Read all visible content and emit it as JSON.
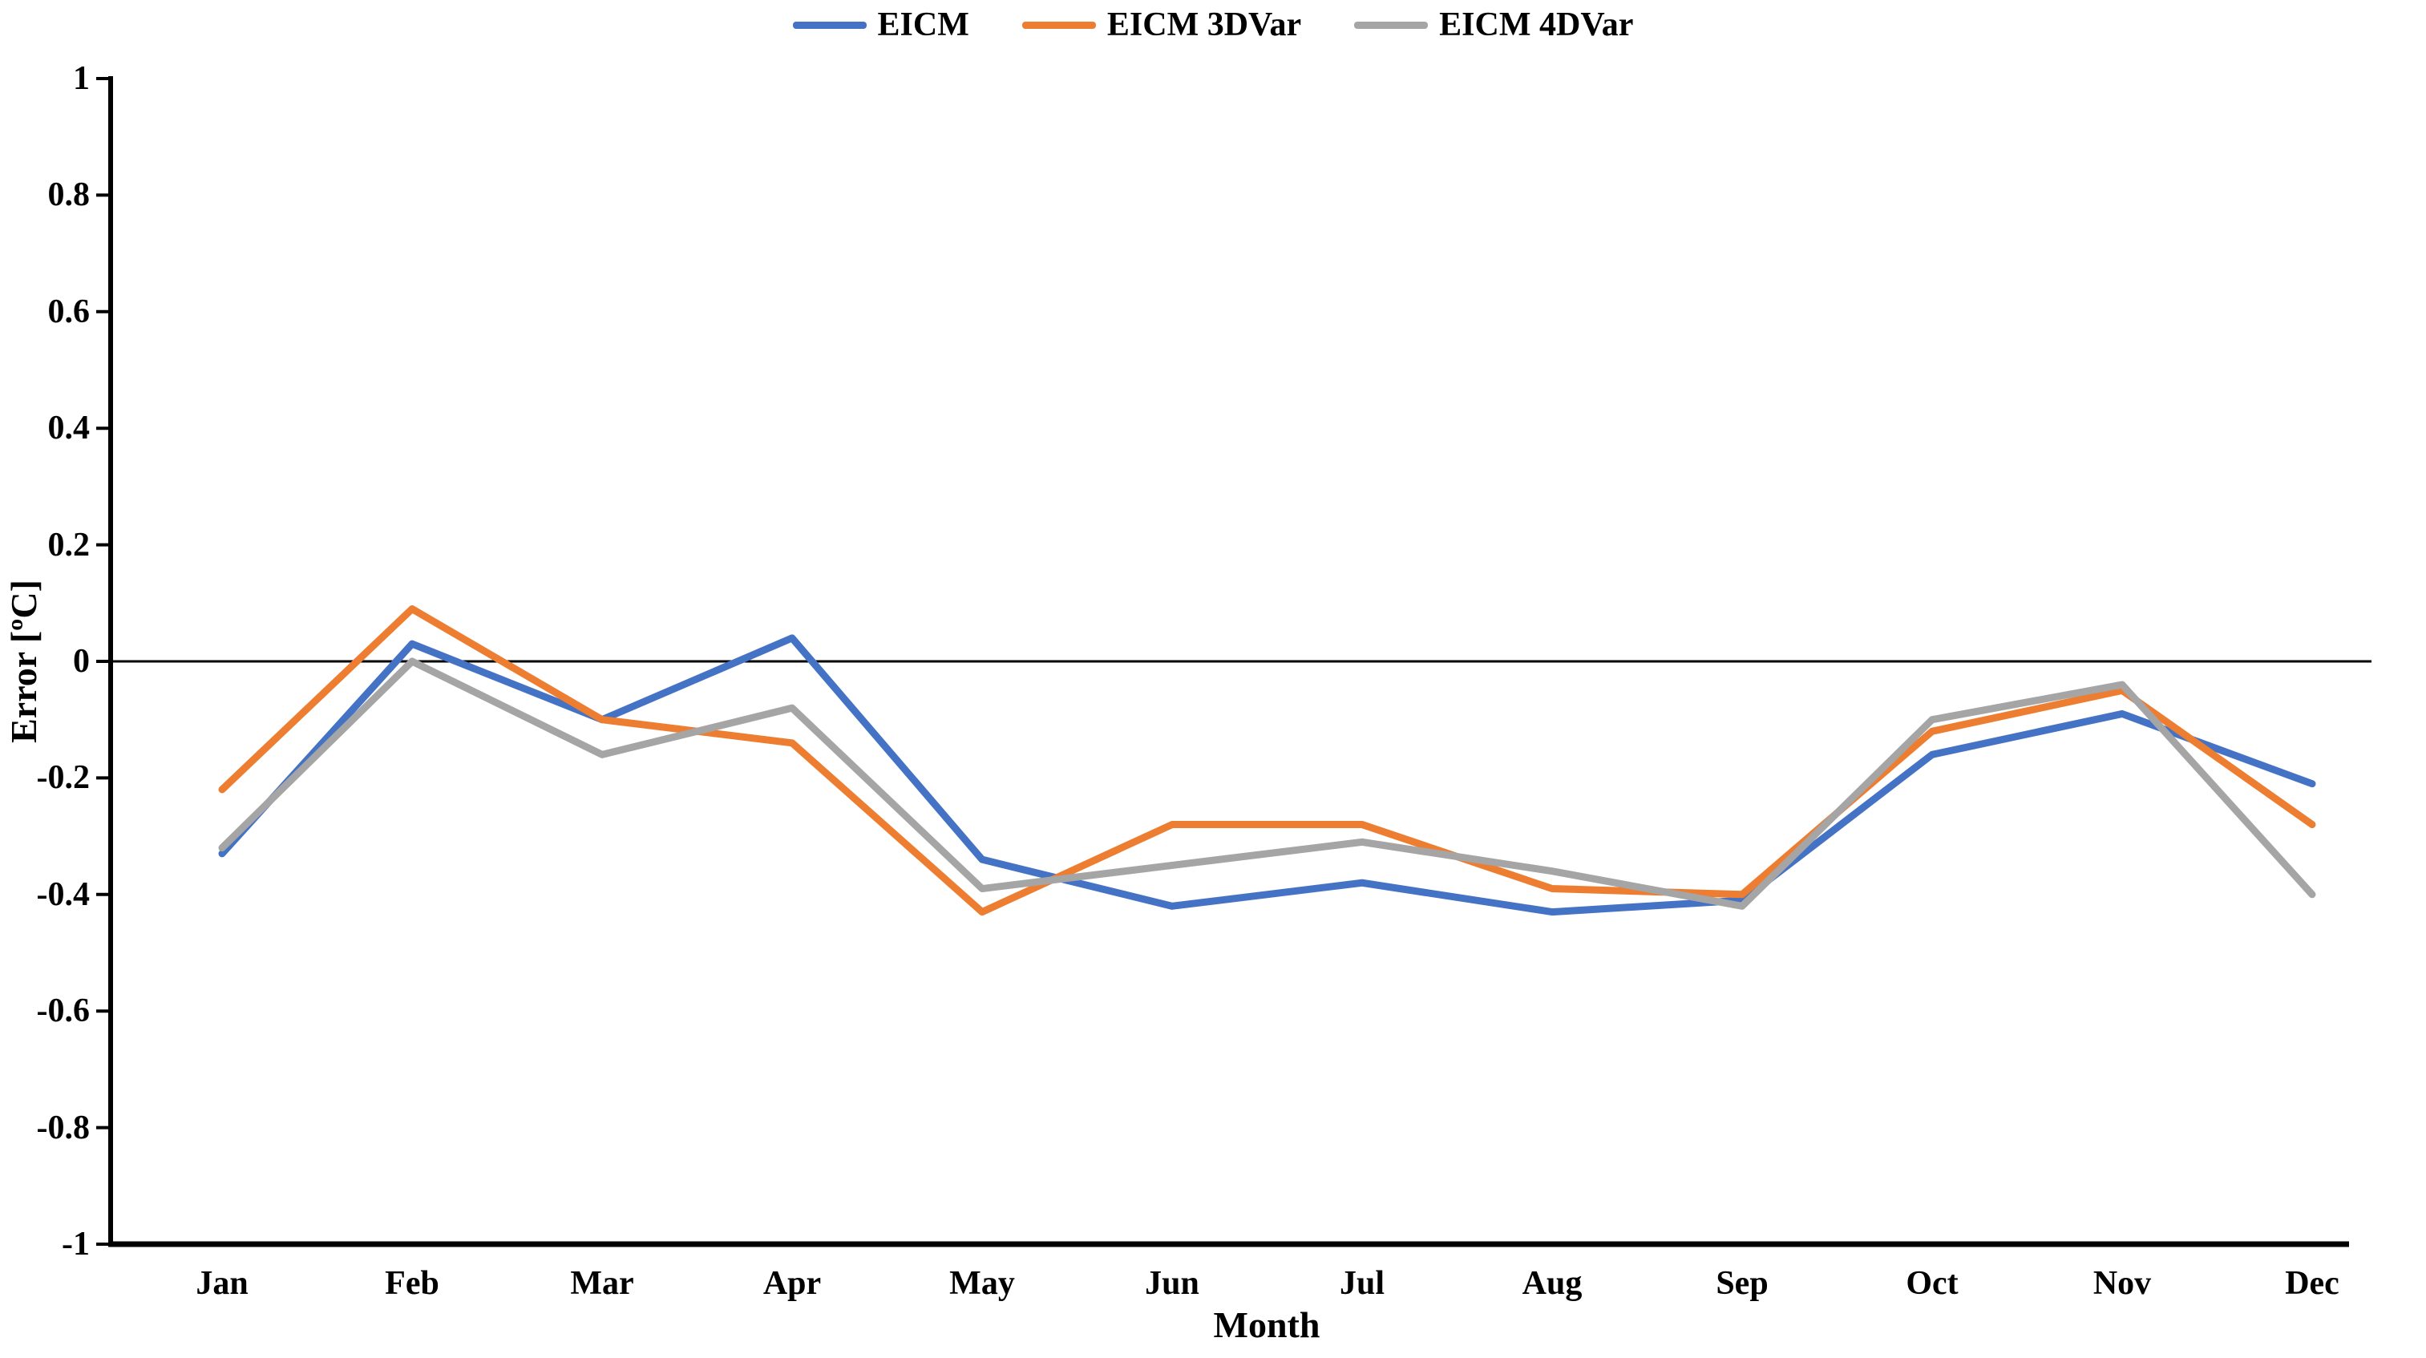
{
  "chart_data": {
    "type": "line",
    "title": "",
    "categories": [
      "Jan",
      "Feb",
      "Mar",
      "Apr",
      "May",
      "Jun",
      "Jul",
      "Aug",
      "Sep",
      "Oct",
      "Nov",
      "Dec"
    ],
    "series": [
      {
        "name": "EICM",
        "color": "#4472C4",
        "values": [
          -0.33,
          0.03,
          -0.1,
          0.04,
          -0.34,
          -0.42,
          -0.38,
          -0.43,
          -0.41,
          -0.16,
          -0.09,
          -0.21
        ]
      },
      {
        "name": "EICM 3DVar",
        "color": "#ED7D31",
        "values": [
          -0.22,
          0.09,
          -0.1,
          -0.14,
          -0.43,
          -0.28,
          -0.28,
          -0.39,
          -0.4,
          -0.12,
          -0.05,
          -0.28
        ]
      },
      {
        "name": "EICM 4DVar",
        "color": "#A5A5A5",
        "values": [
          -0.32,
          0.0,
          -0.16,
          -0.08,
          -0.39,
          -0.35,
          -0.31,
          -0.36,
          -0.42,
          -0.1,
          -0.04,
          -0.4
        ]
      }
    ],
    "xlabel": "Month",
    "ylabel": "Error [ºC]",
    "ylim": [
      -1,
      1
    ],
    "ytick_step": 0.2,
    "y_ticks": [
      {
        "label": "1",
        "value": 1
      },
      {
        "label": "0.8",
        "value": 0.8
      },
      {
        "label": "0.6",
        "value": 0.6
      },
      {
        "label": "0.4",
        "value": 0.4
      },
      {
        "label": "0.2",
        "value": 0.2
      },
      {
        "label": "0",
        "value": 0
      },
      {
        "label": "-0.2",
        "value": -0.2
      },
      {
        "label": "-0.4",
        "value": -0.4
      },
      {
        "label": "-0.6",
        "value": -0.6
      },
      {
        "label": "-0.8",
        "value": -0.8
      },
      {
        "label": "-1",
        "value": -1
      }
    ],
    "grid": "zero-line-only",
    "legend_position": "top",
    "axis_color": "#000000",
    "background_color": "#FFFFFF"
  }
}
